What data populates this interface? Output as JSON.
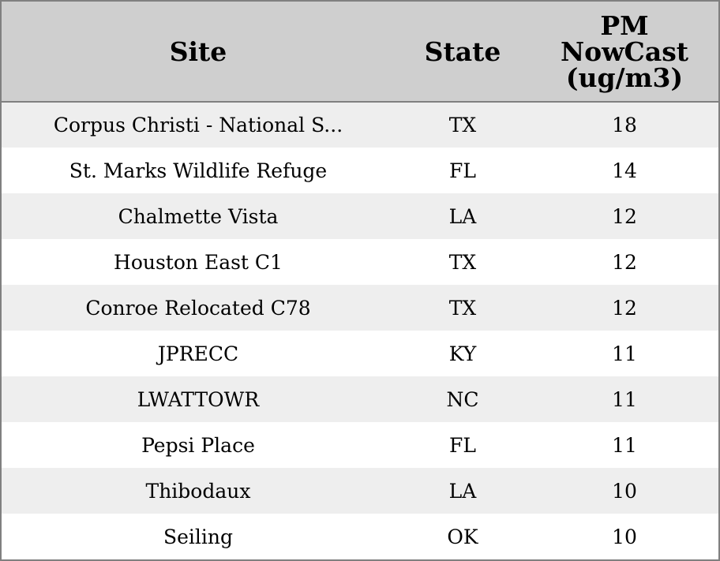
{
  "chart_data": {
    "type": "table",
    "columns": [
      "Site",
      "State",
      "PM NowCast (ug/m3)"
    ],
    "column_header_lines": {
      "site": [
        "Site"
      ],
      "state": [
        "State"
      ],
      "pm": [
        "PM",
        "NowCast",
        "(ug/m3)"
      ]
    },
    "rows": [
      {
        "site": "Corpus Christi - National S...",
        "state": "TX",
        "pm": "18"
      },
      {
        "site": "St. Marks Wildlife Refuge",
        "state": "FL",
        "pm": "14"
      },
      {
        "site": "Chalmette Vista",
        "state": "LA",
        "pm": "12"
      },
      {
        "site": "Houston East C1",
        "state": "TX",
        "pm": "12"
      },
      {
        "site": "Conroe Relocated C78",
        "state": "TX",
        "pm": "12"
      },
      {
        "site": "JPRECC",
        "state": "KY",
        "pm": "11"
      },
      {
        "site": "LWATTOWR",
        "state": "NC",
        "pm": "11"
      },
      {
        "site": "Pepsi Place",
        "state": "FL",
        "pm": "11"
      },
      {
        "site": "Thibodaux",
        "state": "LA",
        "pm": "10"
      },
      {
        "site": "Seiling",
        "state": "OK",
        "pm": "10"
      }
    ]
  },
  "colors": {
    "header_background": "#cfcfcf",
    "row_stripe": "#eeeeee",
    "row_plain": "#ffffff",
    "border": "#808080"
  }
}
